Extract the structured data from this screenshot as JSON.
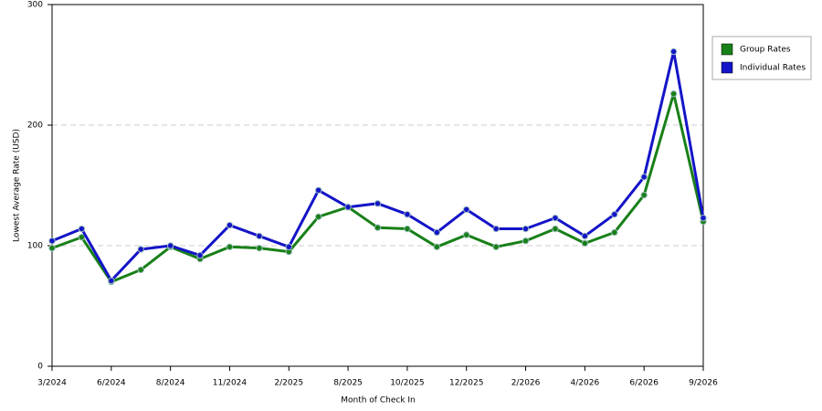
{
  "chart_data": {
    "type": "line",
    "x_label": "Month of Check In",
    "y_label": "Lowest Average Rate (USD)",
    "categories": [
      "3/2024",
      null,
      "6/2024",
      null,
      "8/2024",
      null,
      "11/2024",
      null,
      "2/2025",
      null,
      "8/2025",
      null,
      "10/2025",
      null,
      "12/2025",
      null,
      "2/2026",
      null,
      "4/2026",
      null,
      "6/2026",
      null,
      "9/2026"
    ],
    "series": [
      {
        "name": "Group Rates",
        "color": "#188018",
        "values": [
          98,
          107,
          70,
          80,
          99,
          89,
          99,
          98,
          95,
          124,
          132,
          115,
          114,
          99,
          109,
          99,
          104,
          114,
          102,
          111,
          142,
          226,
          120
        ]
      },
      {
        "name": "Individual Rates",
        "color": "#1414c8",
        "values": [
          104,
          114,
          71,
          97,
          100,
          92,
          117,
          108,
          99,
          146,
          132,
          135,
          126,
          111,
          130,
          114,
          114,
          123,
          108,
          126,
          157,
          261,
          123
        ]
      }
    ],
    "ylim": [
      0,
      300
    ],
    "yticks": [
      0,
      100,
      200,
      300
    ],
    "grid": true,
    "legend": "right"
  }
}
